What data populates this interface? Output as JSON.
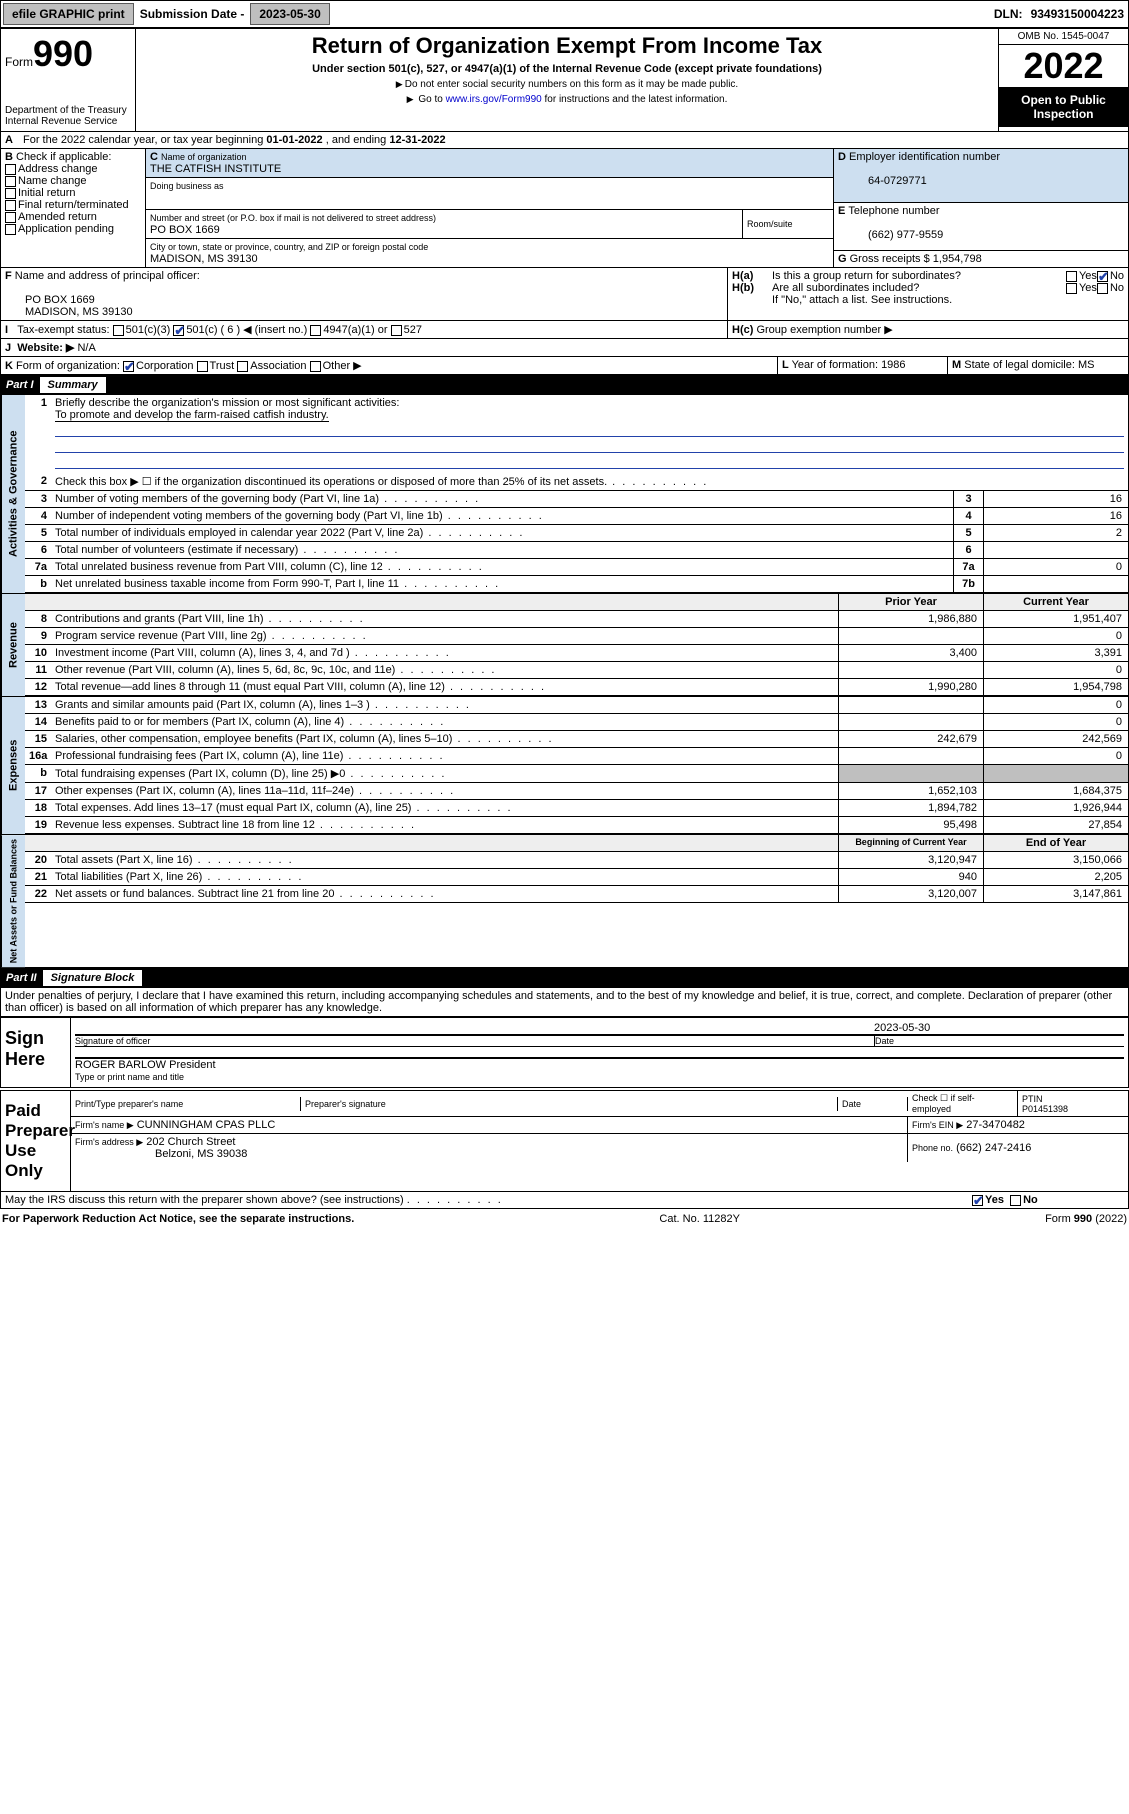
{
  "topbar": {
    "efile": "efile GRAPHIC print",
    "sub_lbl": "Submission Date -",
    "sub_date": "2023-05-30",
    "dln_lbl": "DLN:",
    "dln": "93493150004223"
  },
  "header": {
    "form_word": "Form",
    "form_num": "990",
    "dept": "Department of the Treasury",
    "irs": "Internal Revenue Service",
    "title": "Return of Organization Exempt From Income Tax",
    "sub1": "Under section 501(c), 527, or 4947(a)(1) of the Internal Revenue Code (except private foundations)",
    "note1": "Do not enter social security numbers on this form as it may be made public.",
    "note2_a": "Go to ",
    "note2_link": "www.irs.gov/Form990",
    "note2_b": " for instructions and the latest information.",
    "omb": "OMB No. 1545-0047",
    "year": "2022",
    "open": "Open to Public Inspection"
  },
  "A": {
    "text_a": "For the 2022 calendar year, or tax year beginning ",
    "begin": "01-01-2022",
    "text_b": " , and ending ",
    "end": "12-31-2022"
  },
  "B": {
    "label": "Check if applicable:",
    "items": [
      "Address change",
      "Name change",
      "Initial return",
      "Final return/terminated",
      "Amended return",
      "Application pending"
    ]
  },
  "C": {
    "name_lbl": "Name of organization",
    "name": "THE CATFISH INSTITUTE",
    "dba_lbl": "Doing business as",
    "addr_lbl": "Number and street (or P.O. box if mail is not delivered to street address)",
    "room_lbl": "Room/suite",
    "addr": "PO BOX 1669",
    "city_lbl": "City or town, state or province, country, and ZIP or foreign postal code",
    "city": "MADISON, MS  39130"
  },
  "D": {
    "lbl": "Employer identification number",
    "val": "64-0729771"
  },
  "E": {
    "lbl": "Telephone number",
    "val": "(662) 977-9559"
  },
  "G": {
    "lbl": "Gross receipts $",
    "val": "1,954,798"
  },
  "F": {
    "lbl": "Name and address of principal officer:",
    "l1": "PO BOX 1669",
    "l2": "MADISON, MS  39130"
  },
  "H": {
    "a_lbl": "Is this a group return for subordinates?",
    "a_yes": "Yes",
    "a_no": "No",
    "b_lbl": "Are all subordinates included?",
    "b_note": "If \"No,\" attach a list. See instructions.",
    "c_lbl": "Group exemption number ▶"
  },
  "I": {
    "lbl": "Tax-exempt status:",
    "o1": "501(c)(3)",
    "o2": "501(c) ( 6 ) ◀ (insert no.)",
    "o3": "4947(a)(1) or",
    "o4": "527"
  },
  "J": {
    "lbl": "Website: ▶",
    "val": "N/A"
  },
  "K": {
    "lbl": "Form of organization:",
    "o1": "Corporation",
    "o2": "Trust",
    "o3": "Association",
    "o4": "Other ▶"
  },
  "L": {
    "lbl": "Year of formation:",
    "val": "1986"
  },
  "M": {
    "lbl": "State of legal domicile:",
    "val": "MS"
  },
  "part1": {
    "num": "Part I",
    "title": "Summary"
  },
  "mission": {
    "lbl": "Briefly describe the organization's mission or most significant activities:",
    "txt": "To promote and develop the farm-raised catfish industry."
  },
  "gov_lines": [
    {
      "n": "2",
      "t": "Check this box ▶ ☐  if the organization discontinued its operations or disposed of more than 25% of its net assets.",
      "box": "",
      "v": ""
    },
    {
      "n": "3",
      "t": "Number of voting members of the governing body (Part VI, line 1a)",
      "box": "3",
      "v": "16"
    },
    {
      "n": "4",
      "t": "Number of independent voting members of the governing body (Part VI, line 1b)",
      "box": "4",
      "v": "16"
    },
    {
      "n": "5",
      "t": "Total number of individuals employed in calendar year 2022 (Part V, line 2a)",
      "box": "5",
      "v": "2"
    },
    {
      "n": "6",
      "t": "Total number of volunteers (estimate if necessary)",
      "box": "6",
      "v": ""
    },
    {
      "n": "7a",
      "t": "Total unrelated business revenue from Part VIII, column (C), line 12",
      "box": "7a",
      "v": "0"
    },
    {
      "n": "b",
      "t": "Net unrelated business taxable income from Form 990-T, Part I, line 11",
      "box": "7b",
      "v": ""
    }
  ],
  "col_hdr": {
    "prior": "Prior Year",
    "curr": "Current Year"
  },
  "rev_lines": [
    {
      "n": "8",
      "t": "Contributions and grants (Part VIII, line 1h)",
      "p": "1,986,880",
      "c": "1,951,407"
    },
    {
      "n": "9",
      "t": "Program service revenue (Part VIII, line 2g)",
      "p": "",
      "c": "0"
    },
    {
      "n": "10",
      "t": "Investment income (Part VIII, column (A), lines 3, 4, and 7d )",
      "p": "3,400",
      "c": "3,391"
    },
    {
      "n": "11",
      "t": "Other revenue (Part VIII, column (A), lines 5, 6d, 8c, 9c, 10c, and 11e)",
      "p": "",
      "c": "0"
    },
    {
      "n": "12",
      "t": "Total revenue—add lines 8 through 11 (must equal Part VIII, column (A), line 12)",
      "p": "1,990,280",
      "c": "1,954,798"
    }
  ],
  "exp_lines": [
    {
      "n": "13",
      "t": "Grants and similar amounts paid (Part IX, column (A), lines 1–3 )",
      "p": "",
      "c": "0"
    },
    {
      "n": "14",
      "t": "Benefits paid to or for members (Part IX, column (A), line 4)",
      "p": "",
      "c": "0"
    },
    {
      "n": "15",
      "t": "Salaries, other compensation, employee benefits (Part IX, column (A), lines 5–10)",
      "p": "242,679",
      "c": "242,569"
    },
    {
      "n": "16a",
      "t": "Professional fundraising fees (Part IX, column (A), line 11e)",
      "p": "",
      "c": "0"
    },
    {
      "n": "b",
      "t": "Total fundraising expenses (Part IX, column (D), line 25) ▶0",
      "p": "shade",
      "c": "shade"
    },
    {
      "n": "17",
      "t": "Other expenses (Part IX, column (A), lines 11a–11d, 11f–24e)",
      "p": "1,652,103",
      "c": "1,684,375"
    },
    {
      "n": "18",
      "t": "Total expenses. Add lines 13–17 (must equal Part IX, column (A), line 25)",
      "p": "1,894,782",
      "c": "1,926,944"
    },
    {
      "n": "19",
      "t": "Revenue less expenses. Subtract line 18 from line 12",
      "p": "95,498",
      "c": "27,854"
    }
  ],
  "bal_hdr": {
    "begin": "Beginning of Current Year",
    "end": "End of Year"
  },
  "bal_lines": [
    {
      "n": "20",
      "t": "Total assets (Part X, line 16)",
      "p": "3,120,947",
      "c": "3,150,066"
    },
    {
      "n": "21",
      "t": "Total liabilities (Part X, line 26)",
      "p": "940",
      "c": "2,205"
    },
    {
      "n": "22",
      "t": "Net assets or fund balances. Subtract line 21 from line 20",
      "p": "3,120,007",
      "c": "3,147,861"
    }
  ],
  "part2": {
    "num": "Part II",
    "title": "Signature Block"
  },
  "declare": "Under penalties of perjury, I declare that I have examined this return, including accompanying schedules and statements, and to the best of my knowledge and belief, it is true, correct, and complete. Declaration of preparer (other than officer) is based on all information of which preparer has any knowledge.",
  "sign": {
    "here": "Sign Here",
    "sig_lbl": "Signature of officer",
    "date_lbl": "Date",
    "date": "2023-05-30",
    "officer": "ROGER BARLOW  President",
    "type_lbl": "Type or print name and title"
  },
  "paid": {
    "title": "Paid Preparer Use Only",
    "h1": "Print/Type preparer's name",
    "h2": "Preparer's signature",
    "h3": "Date",
    "h4a": "Check ☐ if self-employed",
    "h4b": "PTIN",
    "ptin": "P01451398",
    "firm_name_lbl": "Firm's name   ▶",
    "firm_name": "CUNNINGHAM CPAS PLLC",
    "ein_lbl": "Firm's EIN ▶",
    "ein": "27-3470482",
    "firm_addr_lbl": "Firm's address ▶",
    "firm_addr1": "202 Church Street",
    "firm_addr2": "Belzoni, MS  39038",
    "phone_lbl": "Phone no.",
    "phone": "(662) 247-2416"
  },
  "discuss": {
    "q": "May the IRS discuss this return with the preparer shown above? (see instructions)",
    "yes": "Yes",
    "no": "No"
  },
  "footer": {
    "l": "For Paperwork Reduction Act Notice, see the separate instructions.",
    "m": "Cat. No. 11282Y",
    "r": "Form 990 (2022)"
  },
  "vlabels": {
    "gov": "Activities & Governance",
    "rev": "Revenue",
    "exp": "Expenses",
    "bal": "Net Assets or Fund Balances"
  }
}
